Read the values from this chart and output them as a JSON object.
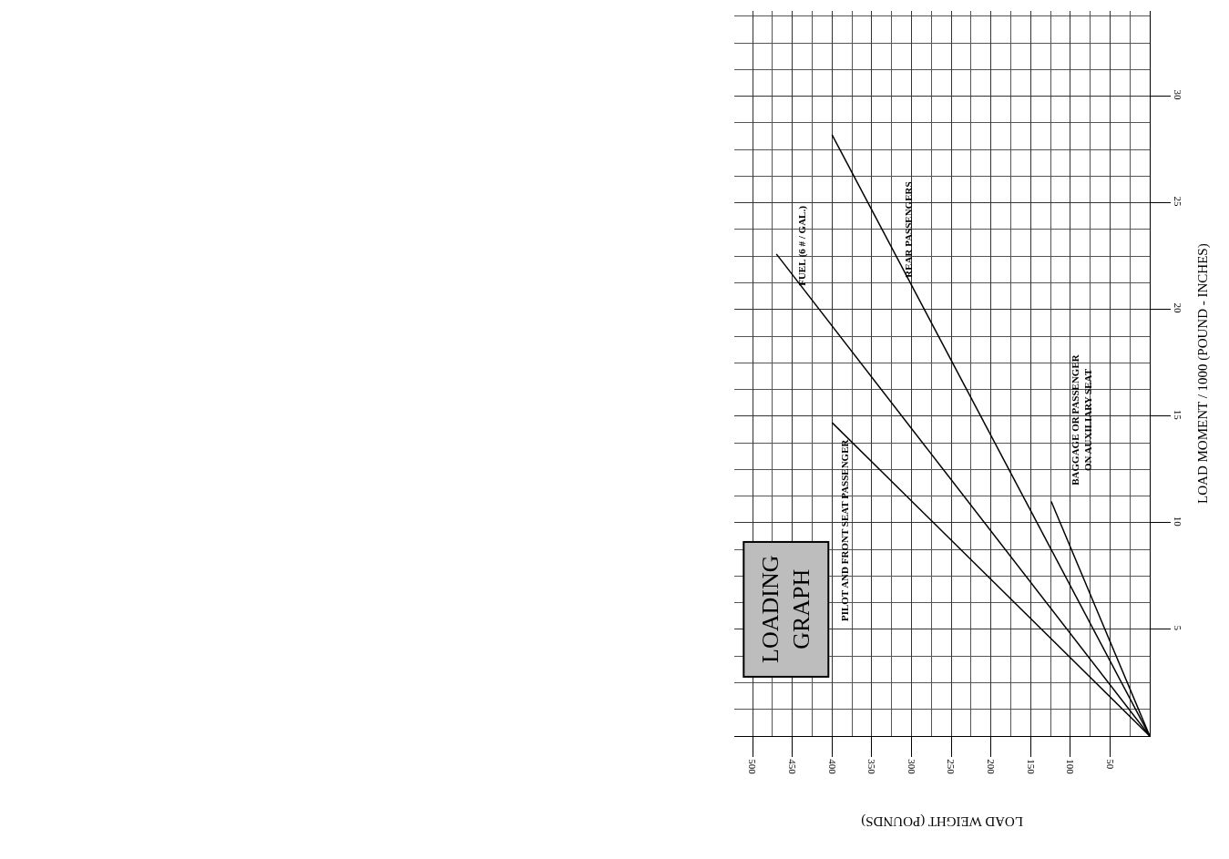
{
  "chart_data": {
    "type": "line",
    "title": "LOADING GRAPH",
    "xlabel": "LOAD WEIGHT (POUNDS)",
    "ylabel": "LOAD MOMENT / 1000 (POUND - INCHES)",
    "series": [
      {
        "name": "PILOT AND FRONT SEAT PASSENGER",
        "color": "#000000",
        "x": [
          0,
          400
        ],
        "values": [
          0,
          14.7
        ]
      },
      {
        "name": "FUEL (6 # / GAL.)",
        "color": "#000000",
        "x": [
          0,
          470
        ],
        "values": [
          0,
          22.6
        ]
      },
      {
        "name": "REAR PASSENGERS",
        "color": "#000000",
        "x": [
          0,
          400
        ],
        "values": [
          0,
          28.2
        ]
      },
      {
        "name": "BAGGAGE OR PASSENGER ON AUXILIARY SEAT",
        "color": "#000000",
        "x": [
          0,
          124
        ],
        "values": [
          0,
          11.0
        ]
      }
    ],
    "xlim": [
      523,
      0
    ],
    "xticks": [
      500,
      450,
      400,
      350,
      300,
      250,
      200,
      150,
      100,
      50
    ],
    "ylim": [
      0,
      34
    ],
    "yticks": [
      5,
      10,
      15,
      20,
      25,
      30
    ],
    "grid": true,
    "marker": "none",
    "line_style": "solid",
    "legend": false
  }
}
